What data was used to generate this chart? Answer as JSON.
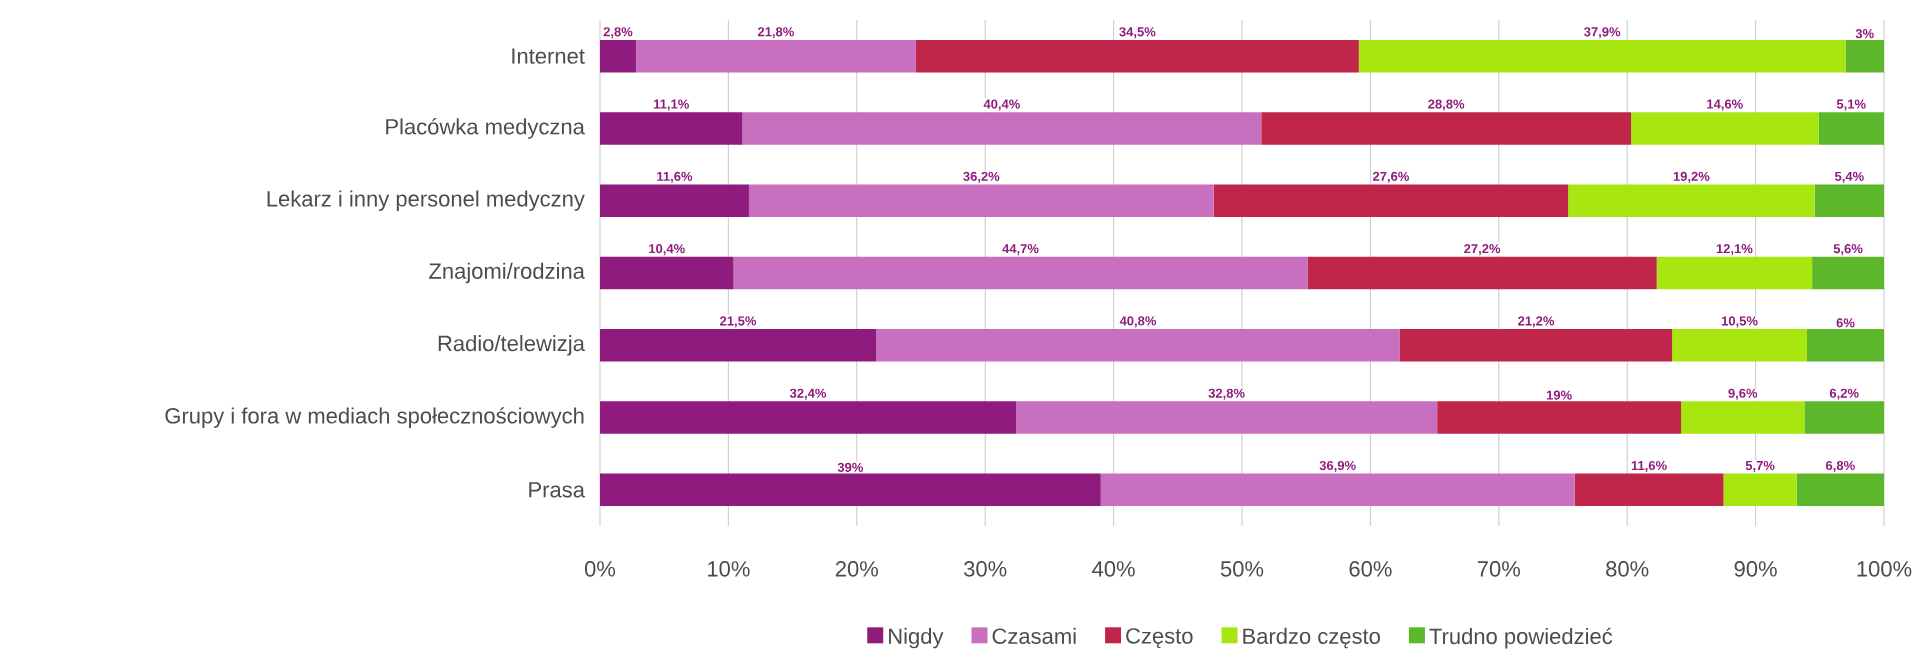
{
  "chart_data": {
    "type": "bar",
    "orientation": "horizontal",
    "stacked": true,
    "categories": [
      "Internet",
      "Placówka medyczna",
      "Lekarz i inny personel medyczny",
      "Znajomi/rodzina",
      "Radio/telewizja",
      "Grupy i fora w mediach społecznościowych",
      "Prasa"
    ],
    "series": [
      {
        "name": "Nigdy",
        "color": "#8e1b7d",
        "values": [
          2.8,
          11.1,
          11.6,
          10.4,
          21.5,
          32.4,
          39
        ],
        "value_labels": [
          "2,8%",
          "11,1%",
          "11,6%",
          "10,4%",
          "21,5%",
          "32,4%",
          "39%"
        ]
      },
      {
        "name": "Czasami",
        "color": "#c86fbf",
        "values": [
          21.8,
          40.4,
          36.2,
          44.7,
          40.8,
          32.8,
          36.9
        ],
        "value_labels": [
          "21,8%",
          "40,4%",
          "36,2%",
          "44,7%",
          "40,8%",
          "32,8%",
          "36,9%"
        ]
      },
      {
        "name": "Często",
        "color": "#c0254a",
        "values": [
          34.5,
          28.8,
          27.6,
          27.2,
          21.2,
          19,
          11.6
        ],
        "value_labels": [
          "34,5%",
          "28,8%",
          "27,6%",
          "27,2%",
          "21,2%",
          "19%",
          "11,6%"
        ]
      },
      {
        "name": "Bardzo często",
        "color": "#a8e60f",
        "values": [
          37.9,
          14.6,
          19.2,
          12.1,
          10.5,
          9.6,
          5.7
        ],
        "value_labels": [
          "37,9%",
          "14,6%",
          "19,2%",
          "12,1%",
          "10,5%",
          "9,6%",
          "5,7%"
        ]
      },
      {
        "name": "Trudno powiedzieć",
        "color": "#5cb82a",
        "values": [
          3,
          5.1,
          5.4,
          5.6,
          6,
          6.2,
          6.8
        ],
        "value_labels": [
          "3%",
          "5,1%",
          "5,4%",
          "5,6%",
          "6%",
          "6,2%",
          "6,8%"
        ]
      }
    ],
    "xlim": [
      0,
      100
    ],
    "xticks": [
      {
        "value": 0,
        "label": "0%"
      },
      {
        "value": 10,
        "label": "10%"
      },
      {
        "value": 20,
        "label": "20%"
      },
      {
        "value": 30,
        "label": "30%"
      },
      {
        "value": 40,
        "label": "40%"
      },
      {
        "value": 50,
        "label": "50%"
      },
      {
        "value": 60,
        "label": "60%"
      },
      {
        "value": 70,
        "label": "70%"
      },
      {
        "value": 80,
        "label": "80%"
      },
      {
        "value": 90,
        "label": "90%"
      },
      {
        "value": 100,
        "label": "100%"
      }
    ],
    "grid": "x",
    "legend": "bottom"
  }
}
